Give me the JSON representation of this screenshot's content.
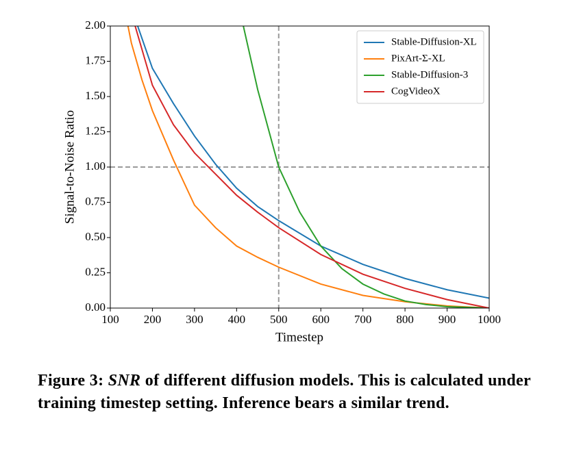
{
  "chart_data": {
    "type": "line",
    "xlabel": "Timestep",
    "ylabel": "Signal-to-Noise Ratio",
    "xlim": [
      100,
      1000
    ],
    "ylim": [
      0,
      2
    ],
    "xticks": [
      100,
      200,
      300,
      400,
      500,
      600,
      700,
      800,
      900,
      1000
    ],
    "yticks": [
      {
        "value": 0,
        "label": "0.00"
      },
      {
        "value": 0.25,
        "label": "0.25"
      },
      {
        "value": 0.5,
        "label": "0.50"
      },
      {
        "value": 0.75,
        "label": "0.75"
      },
      {
        "value": 1,
        "label": "1.00"
      },
      {
        "value": 1.25,
        "label": "1.25"
      },
      {
        "value": 1.5,
        "label": "1.50"
      },
      {
        "value": 1.75,
        "label": "1.75"
      },
      {
        "value": 2,
        "label": "2.00"
      }
    ],
    "reference_lines": {
      "x": 500,
      "y": 1,
      "color": "#999999"
    },
    "legend": "upper right",
    "series": [
      {
        "name": "Stable-Diffusion-XL",
        "color": "#1f77b4",
        "x": [
          165,
          200,
          250,
          300,
          350,
          400,
          450,
          500,
          600,
          700,
          800,
          900,
          1000
        ],
        "values": [
          2.0,
          1.7,
          1.45,
          1.22,
          1.02,
          0.85,
          0.72,
          0.62,
          0.44,
          0.31,
          0.21,
          0.13,
          0.07
        ]
      },
      {
        "name": "PixArt-Σ-XL",
        "color": "#ff7f0e",
        "x": [
          142,
          150,
          175,
          200,
          250,
          300,
          350,
          400,
          450,
          500,
          600,
          700,
          800,
          900,
          1000
        ],
        "values": [
          2.0,
          1.88,
          1.62,
          1.4,
          1.05,
          0.73,
          0.57,
          0.44,
          0.36,
          0.29,
          0.17,
          0.09,
          0.045,
          0.015,
          0
        ]
      },
      {
        "name": "Stable-Diffusion-3",
        "color": "#2ca02c",
        "x": [
          416,
          450,
          500,
          550,
          600,
          650,
          700,
          750,
          800,
          850,
          900,
          1000
        ],
        "values": [
          2.0,
          1.55,
          1.0,
          0.68,
          0.44,
          0.28,
          0.17,
          0.1,
          0.05,
          0.025,
          0.01,
          0
        ]
      },
      {
        "name": "CogVideoX",
        "color": "#d62728",
        "x": [
          159,
          200,
          250,
          300,
          350,
          400,
          450,
          500,
          600,
          700,
          800,
          900,
          1000
        ],
        "values": [
          2.0,
          1.58,
          1.3,
          1.1,
          0.95,
          0.8,
          0.68,
          0.57,
          0.38,
          0.24,
          0.14,
          0.06,
          0
        ]
      }
    ]
  },
  "caption": {
    "label": "Figure 3:",
    "emph": "SNR",
    "text": "of different diffusion models. This is calculated under training timestep setting. Inference bears a similar trend."
  }
}
